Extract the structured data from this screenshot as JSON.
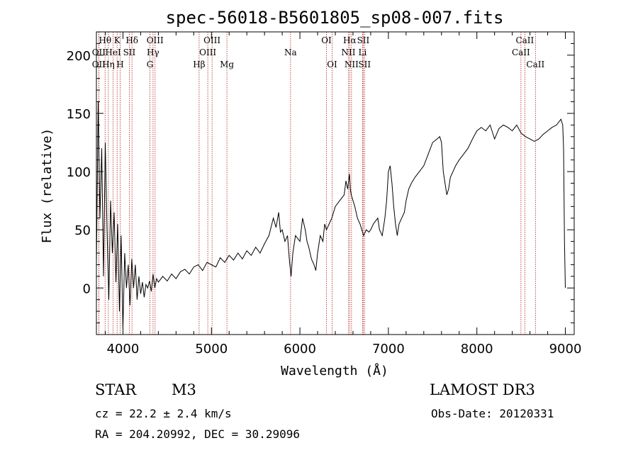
{
  "chart_data": {
    "type": "line",
    "title": "spec-56018-B5601805_sp08-007.fits",
    "xlabel": "Wavelength (Å)",
    "ylabel": "Flux (relative)",
    "xlim": [
      3700,
      9100
    ],
    "ylim": [
      -40,
      220
    ],
    "x_ticks": [
      4000,
      5000,
      6000,
      7000,
      8000,
      9000
    ],
    "y_ticks": [
      0,
      50,
      100,
      150,
      200
    ],
    "series": [
      {
        "x": [
          3700,
          3720,
          3740,
          3760,
          3780,
          3800,
          3820,
          3840,
          3860,
          3880,
          3900,
          3920,
          3940,
          3960,
          3980,
          4000,
          4020,
          4040,
          4060,
          4080,
          4100,
          4120,
          4140,
          4160,
          4180,
          4200,
          4220,
          4240,
          4260,
          4280,
          4300,
          4320,
          4340,
          4360,
          4380,
          4400,
          4450,
          4500,
          4550,
          4600,
          4650,
          4700,
          4750,
          4800,
          4850,
          4900,
          4950,
          5000,
          5050,
          5100,
          5150,
          5200,
          5250,
          5300,
          5350,
          5400,
          5450,
          5500,
          5550,
          5600,
          5650,
          5700,
          5730,
          5760,
          5780,
          5800,
          5830,
          5860,
          5880,
          5900,
          5920,
          5950,
          6000,
          6030,
          6060,
          6080,
          6100,
          6130,
          6160,
          6180,
          6200,
          6230,
          6260,
          6280,
          6300,
          6330,
          6360,
          6400,
          6450,
          6500,
          6520,
          6540,
          6560,
          6570,
          6580,
          6600,
          6620,
          6650,
          6680,
          6700,
          6720,
          6750,
          6780,
          6800,
          6830,
          6860,
          6880,
          6900,
          6930,
          6960,
          6980,
          7000,
          7020,
          7040,
          7060,
          7080,
          7100,
          7120,
          7150,
          7180,
          7200,
          7230,
          7260,
          7300,
          7350,
          7400,
          7450,
          7500,
          7550,
          7580,
          7600,
          7620,
          7640,
          7660,
          7680,
          7700,
          7730,
          7760,
          7800,
          7850,
          7900,
          7950,
          8000,
          8050,
          8100,
          8150,
          8200,
          8250,
          8300,
          8350,
          8400,
          8450,
          8500,
          8550,
          8600,
          8650,
          8700,
          8750,
          8800,
          8850,
          8900,
          8950,
          8970,
          8980,
          8990,
          9000
        ],
        "y": [
          20,
          160,
          60,
          120,
          10,
          125,
          50,
          -10,
          75,
          30,
          65,
          5,
          55,
          -20,
          45,
          -35,
          30,
          0,
          20,
          -15,
          25,
          0,
          20,
          -10,
          10,
          -5,
          5,
          -8,
          3,
          0,
          6,
          -3,
          12,
          0,
          8,
          5,
          10,
          6,
          12,
          8,
          14,
          16,
          12,
          18,
          20,
          15,
          22,
          20,
          18,
          26,
          22,
          28,
          24,
          30,
          25,
          32,
          28,
          35,
          30,
          38,
          45,
          60,
          52,
          65,
          48,
          50,
          40,
          45,
          25,
          10,
          30,
          45,
          40,
          60,
          50,
          40,
          35,
          25,
          20,
          15,
          30,
          45,
          40,
          55,
          50,
          55,
          60,
          70,
          75,
          80,
          92,
          85,
          98,
          85,
          80,
          75,
          70,
          60,
          55,
          50,
          45,
          50,
          48,
          50,
          55,
          58,
          60,
          50,
          45,
          60,
          75,
          100,
          105,
          90,
          70,
          55,
          45,
          55,
          60,
          65,
          75,
          85,
          90,
          95,
          100,
          105,
          115,
          125,
          128,
          130,
          125,
          100,
          90,
          80,
          85,
          95,
          100,
          105,
          110,
          115,
          120,
          128,
          135,
          138,
          135,
          140,
          128,
          137,
          140,
          138,
          135,
          140,
          133,
          130,
          128,
          126,
          128,
          132,
          135,
          138,
          140,
          145,
          140,
          120,
          40,
          0
        ]
      }
    ],
    "lines": [
      {
        "name": "Hθ",
        "x": 3798,
        "row": 0
      },
      {
        "name": "OII",
        "x": 3727,
        "row": 1
      },
      {
        "name": "OII",
        "x": 3727,
        "row": 2
      },
      {
        "name": "Hη",
        "x": 3835,
        "row": 2
      },
      {
        "name": "HeI",
        "x": 3889,
        "row": 1
      },
      {
        "name": "K",
        "x": 3934,
        "row": 0
      },
      {
        "name": "SII",
        "x": 4072,
        "row": 1
      },
      {
        "name": "H",
        "x": 3968,
        "row": 2
      },
      {
        "name": "Hδ",
        "x": 4102,
        "row": 0
      },
      {
        "name": "OIII",
        "x": 4363,
        "row": 0
      },
      {
        "name": "Hγ",
        "x": 4340,
        "row": 1
      },
      {
        "name": "G",
        "x": 4305,
        "row": 2
      },
      {
        "name": "OIII",
        "x": 5007,
        "row": 0
      },
      {
        "name": "OIII",
        "x": 4959,
        "row": 1
      },
      {
        "name": "Hβ",
        "x": 4861,
        "row": 2
      },
      {
        "name": "Mg",
        "x": 5175,
        "row": 2
      },
      {
        "name": "Na",
        "x": 5894,
        "row": 1
      },
      {
        "name": "OI",
        "x": 6300,
        "row": 0
      },
      {
        "name": "OI",
        "x": 6364,
        "row": 2
      },
      {
        "name": "Hα",
        "x": 6563,
        "row": 0
      },
      {
        "name": "SII",
        "x": 6716,
        "row": 0
      },
      {
        "name": "NII",
        "x": 6548,
        "row": 1
      },
      {
        "name": "Li",
        "x": 6708,
        "row": 1
      },
      {
        "name": "NII",
        "x": 6583,
        "row": 2
      },
      {
        "name": "SII",
        "x": 6731,
        "row": 2
      },
      {
        "name": "CaII",
        "x": 8542,
        "row": 0
      },
      {
        "name": "CaII",
        "x": 8498,
        "row": 1
      },
      {
        "name": "CaII",
        "x": 8662,
        "row": 2
      }
    ]
  },
  "info": {
    "class_label": "STAR",
    "subclass": "M3",
    "survey": "LAMOST DR3",
    "cz": "cz = 22.2 ± 2.4 km/s",
    "obs_date": "Obs-Date: 20120331",
    "coords": "RA = 204.20992, DEC =  30.29096"
  },
  "colors": {
    "spectrum": "#000000",
    "line_markers": "#b22222"
  }
}
